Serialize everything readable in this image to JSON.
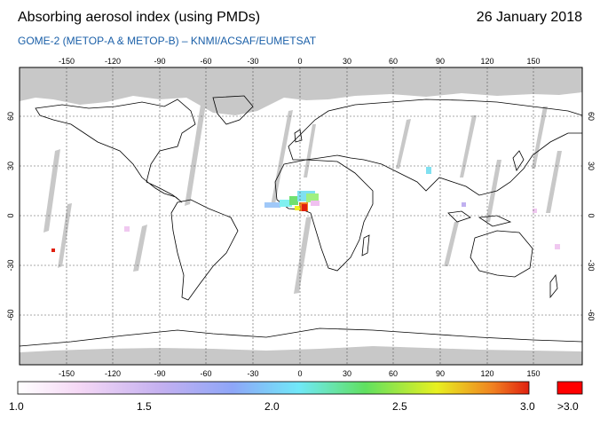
{
  "header": {
    "title": "Absorbing aerosol index (using PMDs)",
    "date": "26 January 2018",
    "subtitle": "GOME-2 (METOP-A & METOP-B)  –  KNMI/ACSAF/EUMETSAT"
  },
  "map": {
    "lon_ticks": [
      "-150",
      "-120",
      "-90",
      "-60",
      "-30",
      "0",
      "30",
      "60",
      "90",
      "120",
      "150"
    ],
    "lat_ticks": [
      "60",
      "30",
      "0",
      "-30",
      "-60"
    ],
    "colors": {
      "no_data": "#c8c8c8",
      "border": "#000000"
    }
  },
  "colorbar": {
    "labels": [
      "1.0",
      "1.5",
      "2.0",
      "2.5",
      "3.0"
    ],
    "max_label": ">3.0",
    "max_color": "#ff0000",
    "gradient_colors": [
      "#ffffff",
      "#f0c8f0",
      "#9aa8f8",
      "#70e8f8",
      "#70f070",
      "#f0f020",
      "#f07018",
      "#e02010"
    ]
  }
}
